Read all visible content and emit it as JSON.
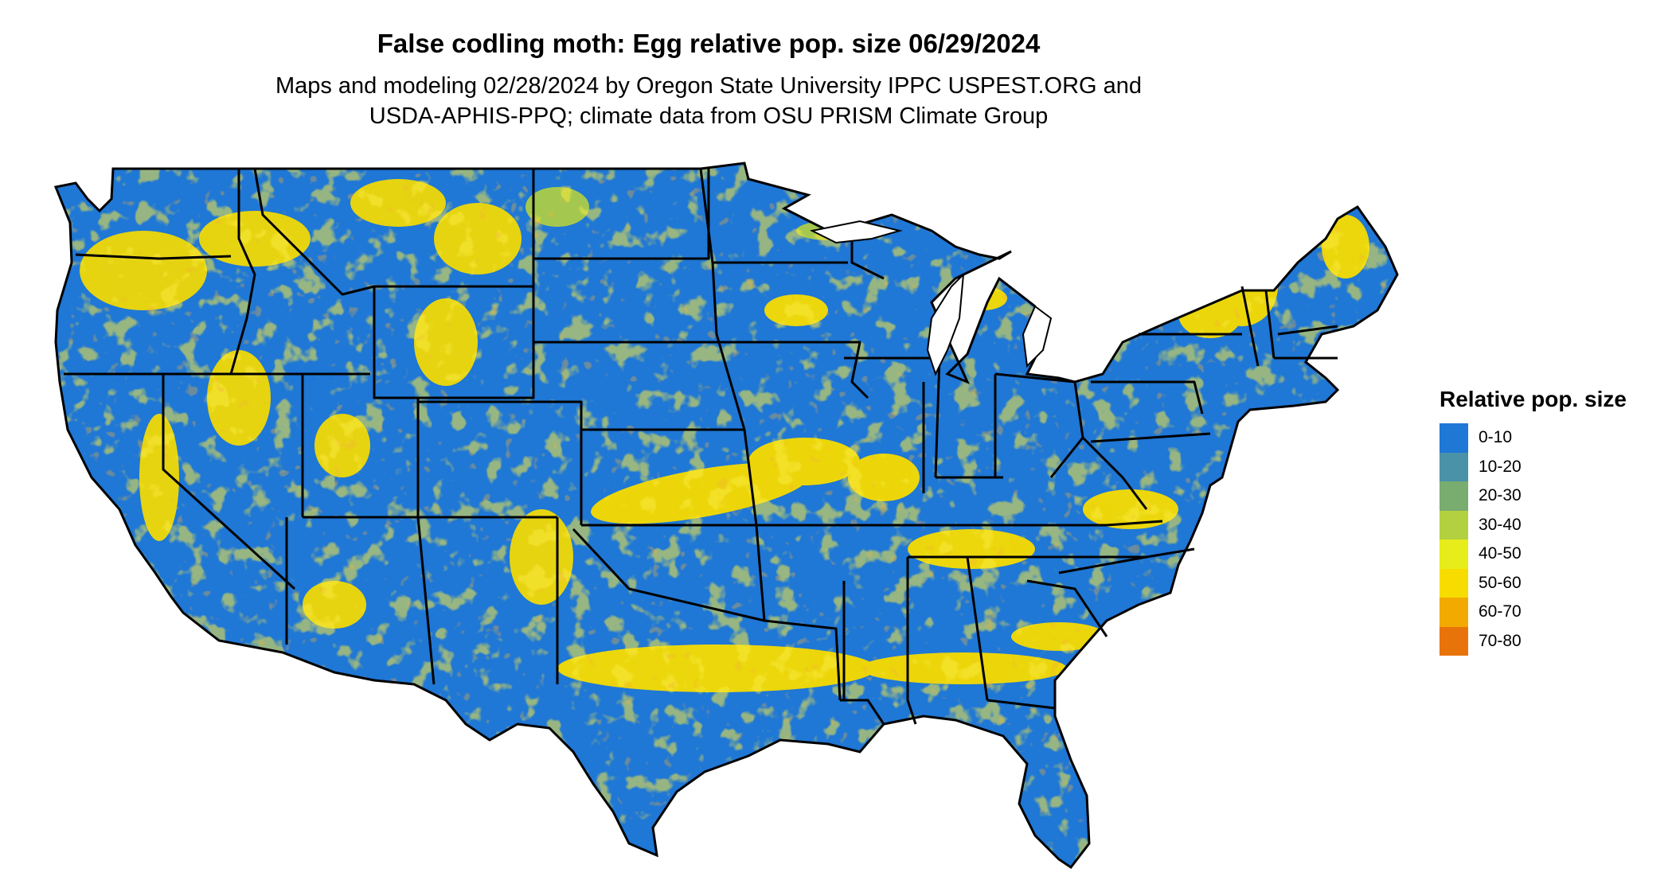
{
  "title": "False codling moth: Egg relative pop. size 06/29/2024",
  "subtitle_line1": "Maps and modeling 02/28/2024 by Oregon State University IPPC USPEST.ORG and",
  "subtitle_line2": "USDA-APHIS-PPQ; climate data from OSU PRISM Climate Group",
  "legend": {
    "title": "Relative pop. size",
    "items": [
      {
        "label": "0-10",
        "color": "#1f77d6"
      },
      {
        "label": "10-20",
        "color": "#4a92a8"
      },
      {
        "label": "20-30",
        "color": "#78ad6f"
      },
      {
        "label": "30-40",
        "color": "#b3d040"
      },
      {
        "label": "40-50",
        "color": "#e6ed1a"
      },
      {
        "label": "50-60",
        "color": "#f7dc00"
      },
      {
        "label": "60-70",
        "color": "#f2a900"
      },
      {
        "label": "70-80",
        "color": "#e8730b"
      }
    ]
  }
}
